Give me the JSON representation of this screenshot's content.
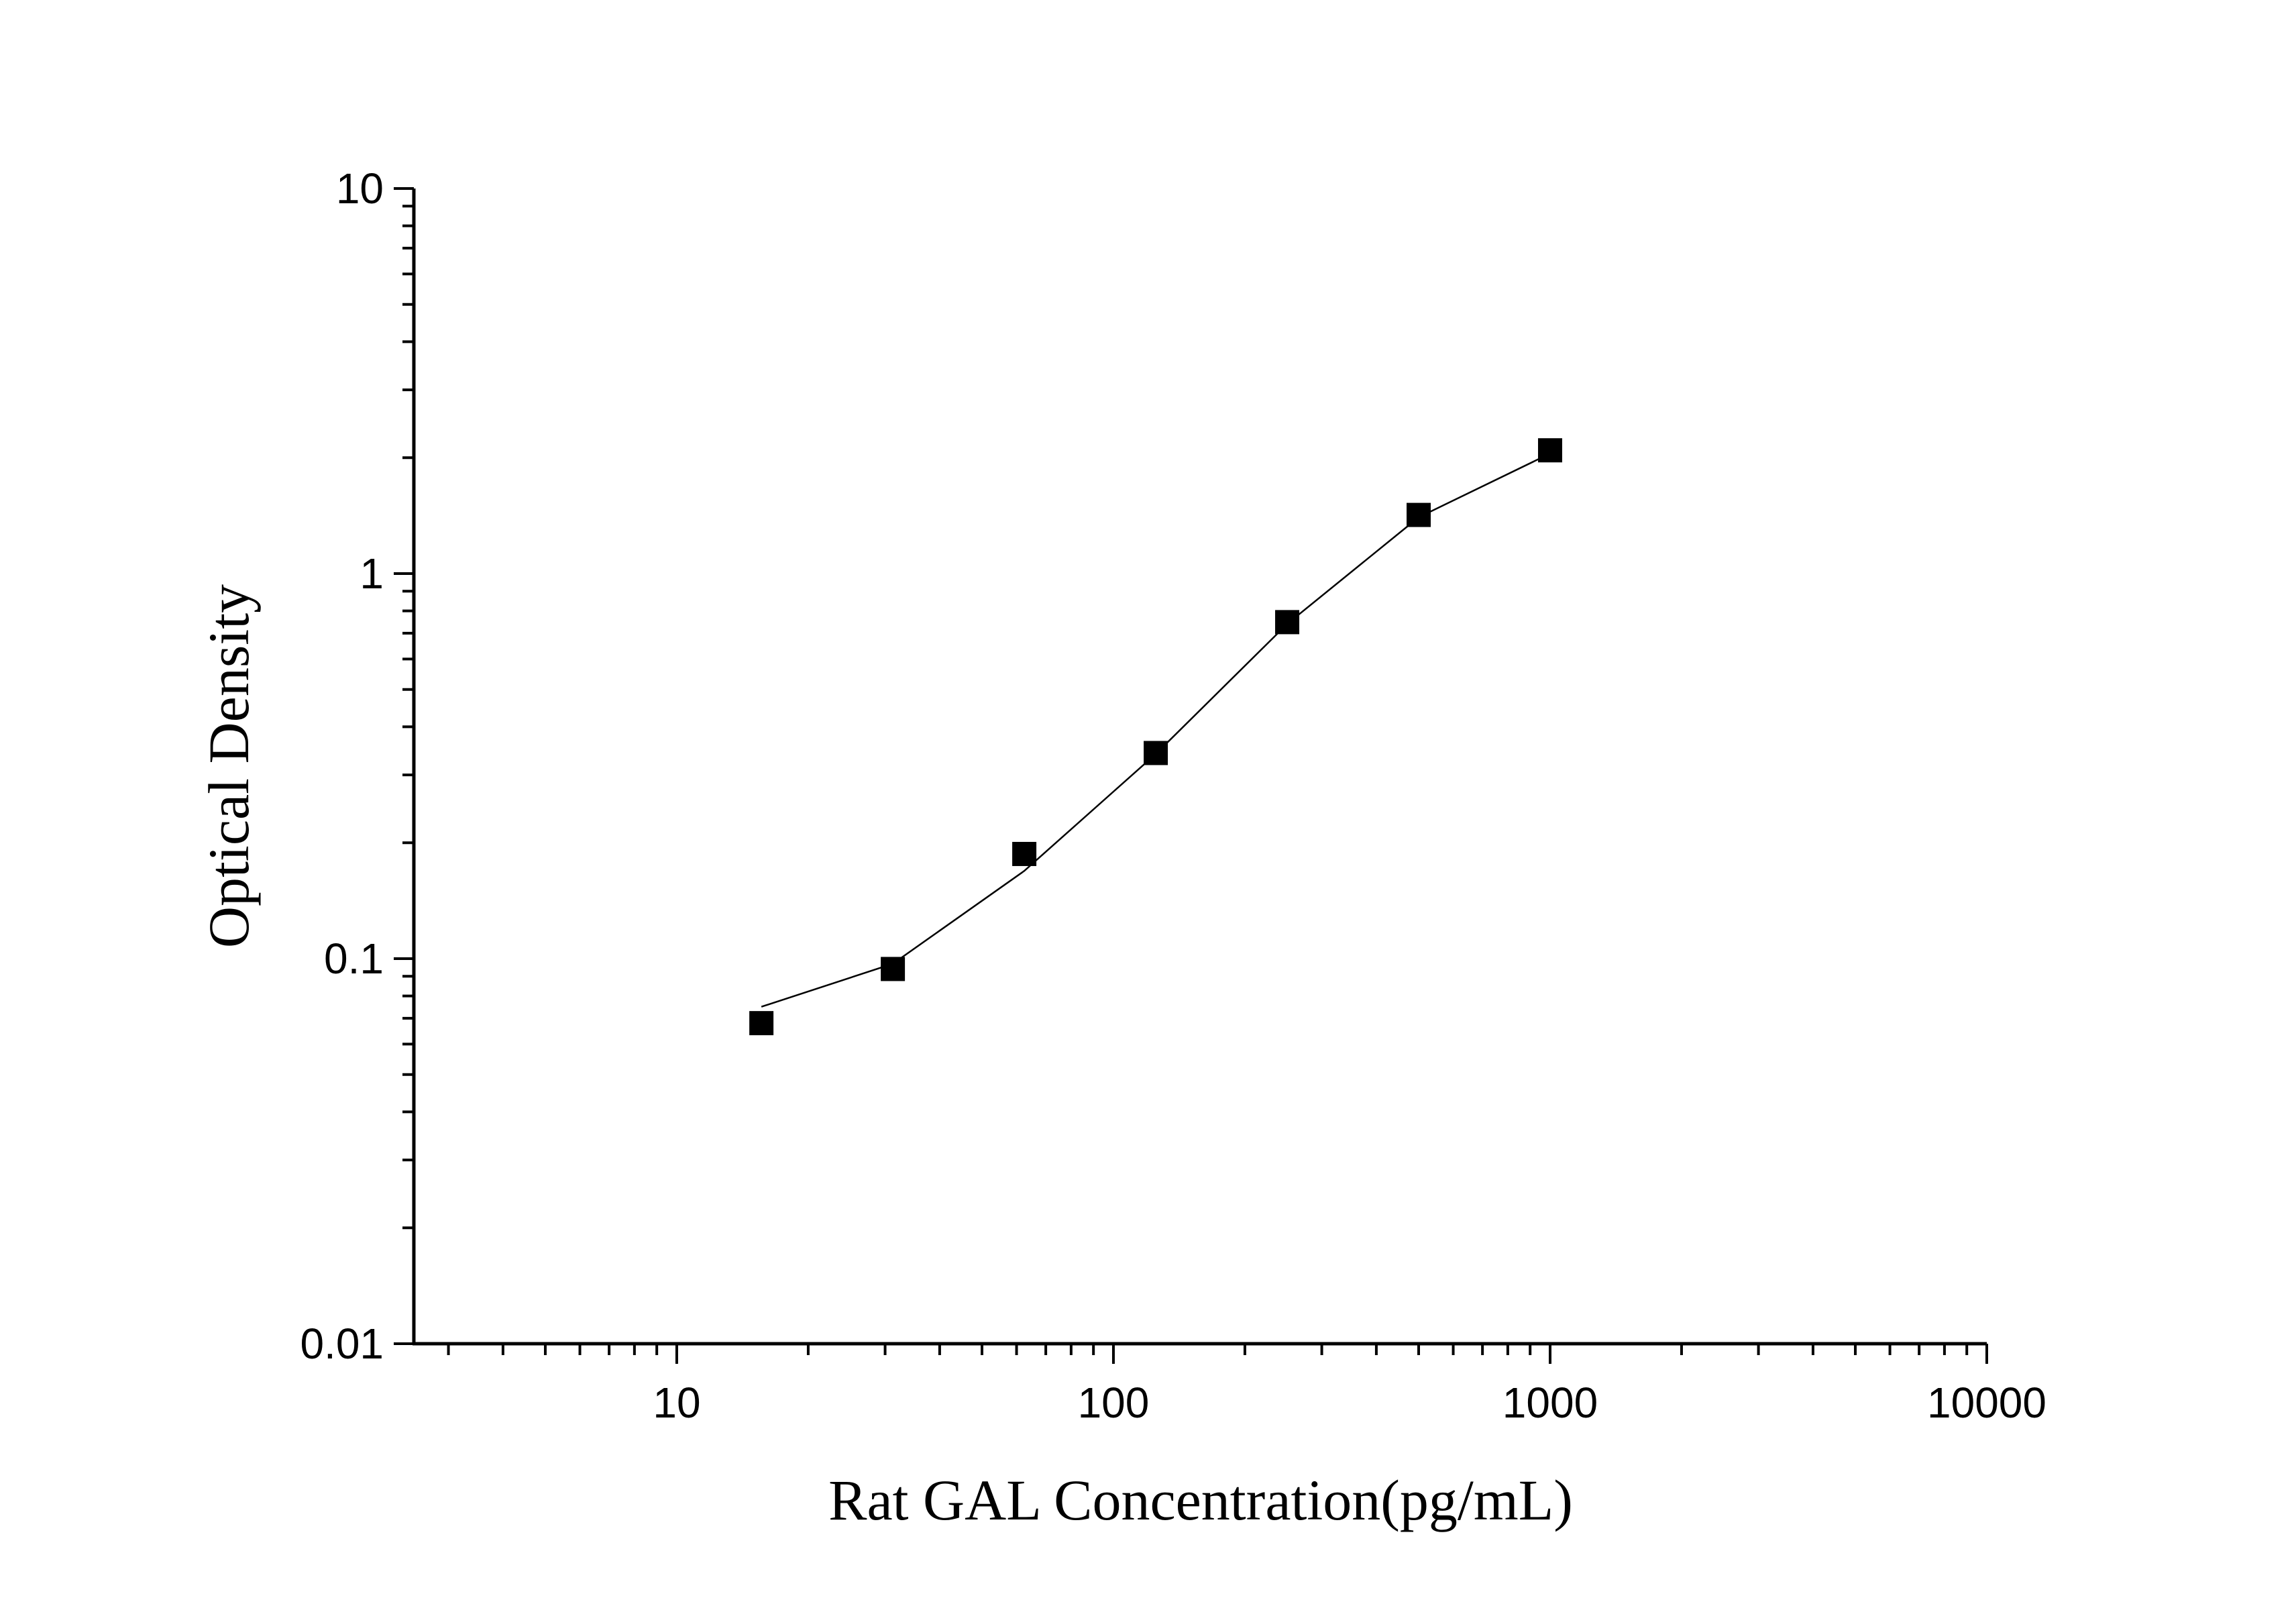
{
  "chart_data": {
    "type": "scatter",
    "title": "",
    "xlabel": "Rat GAL Concentration(pg/mL)",
    "ylabel": "Optical Density",
    "x_scale": "log",
    "y_scale": "log",
    "xlim": [
      2.5,
      10000
    ],
    "ylim": [
      0.01,
      10
    ],
    "x_ticks": [
      "10",
      "100",
      "1000",
      "10000"
    ],
    "y_ticks": [
      "0.01",
      "0.1",
      "1",
      "10"
    ],
    "x_tick_values": [
      10,
      100,
      1000,
      10000
    ],
    "y_tick_values": [
      0.01,
      0.1,
      1,
      10
    ],
    "grid": false,
    "legend": "none",
    "series": [
      {
        "marker": "square",
        "color": "#000000",
        "x": [
          15.625,
          31.25,
          62.5,
          125,
          250,
          500,
          1000
        ],
        "y": [
          0.068,
          0.094,
          0.187,
          0.342,
          0.748,
          1.42,
          2.09
        ]
      }
    ],
    "fit_curve": {
      "color": "#000000",
      "x": [
        15.625,
        31.25,
        62.5,
        125,
        250,
        500,
        1000
      ],
      "y": [
        0.075,
        0.097,
        0.169,
        0.34,
        0.74,
        1.4,
        2.05
      ]
    }
  }
}
